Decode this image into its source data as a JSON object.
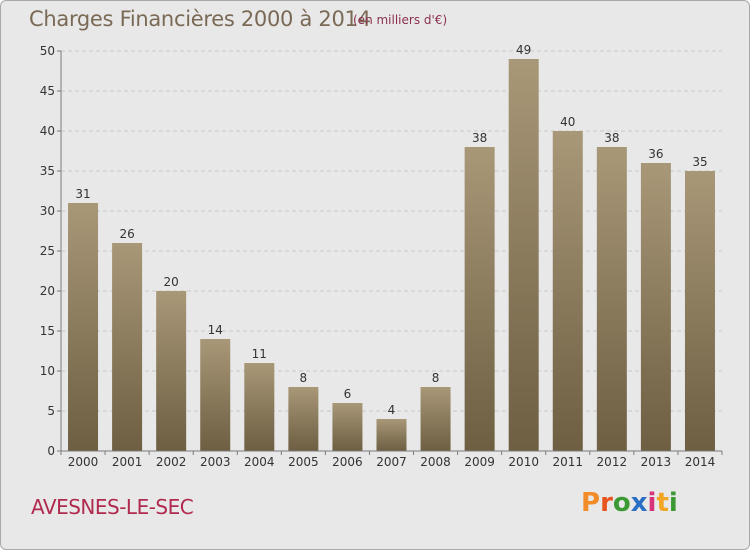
{
  "header": {
    "title": "Charges Financières 2000 à 2014",
    "unit": "(en milliers d'€)"
  },
  "footer": {
    "place": "AVESNES-LE-SEC",
    "logo": "Proxiti",
    "logo_colors": [
      "#f28c28",
      "#e8541e",
      "#3c9a35",
      "#2a6fc4",
      "#d6337a",
      "#f2a623",
      "#3c9a35"
    ]
  },
  "colors": {
    "bar_top": "#a89878",
    "bar_bottom": "#6e5e42",
    "grid": "#c8c8c8",
    "axis": "#7a7a7a"
  },
  "chart_data": {
    "type": "bar",
    "title": "Charges Financières 2000 à 2014",
    "subtitle": "(en milliers d'€)",
    "categories": [
      "2000",
      "2001",
      "2002",
      "2003",
      "2004",
      "2005",
      "2006",
      "2007",
      "2008",
      "2009",
      "2010",
      "2011",
      "2012",
      "2013",
      "2014"
    ],
    "values": [
      31,
      26,
      20,
      14,
      11,
      8,
      6,
      4,
      8,
      38,
      49,
      40,
      38,
      36,
      35
    ],
    "ylim": [
      0,
      50
    ],
    "yticks": [
      0,
      5,
      10,
      15,
      20,
      25,
      30,
      35,
      40,
      45,
      50
    ],
    "grid": true,
    "xlabel": "",
    "ylabel": ""
  }
}
